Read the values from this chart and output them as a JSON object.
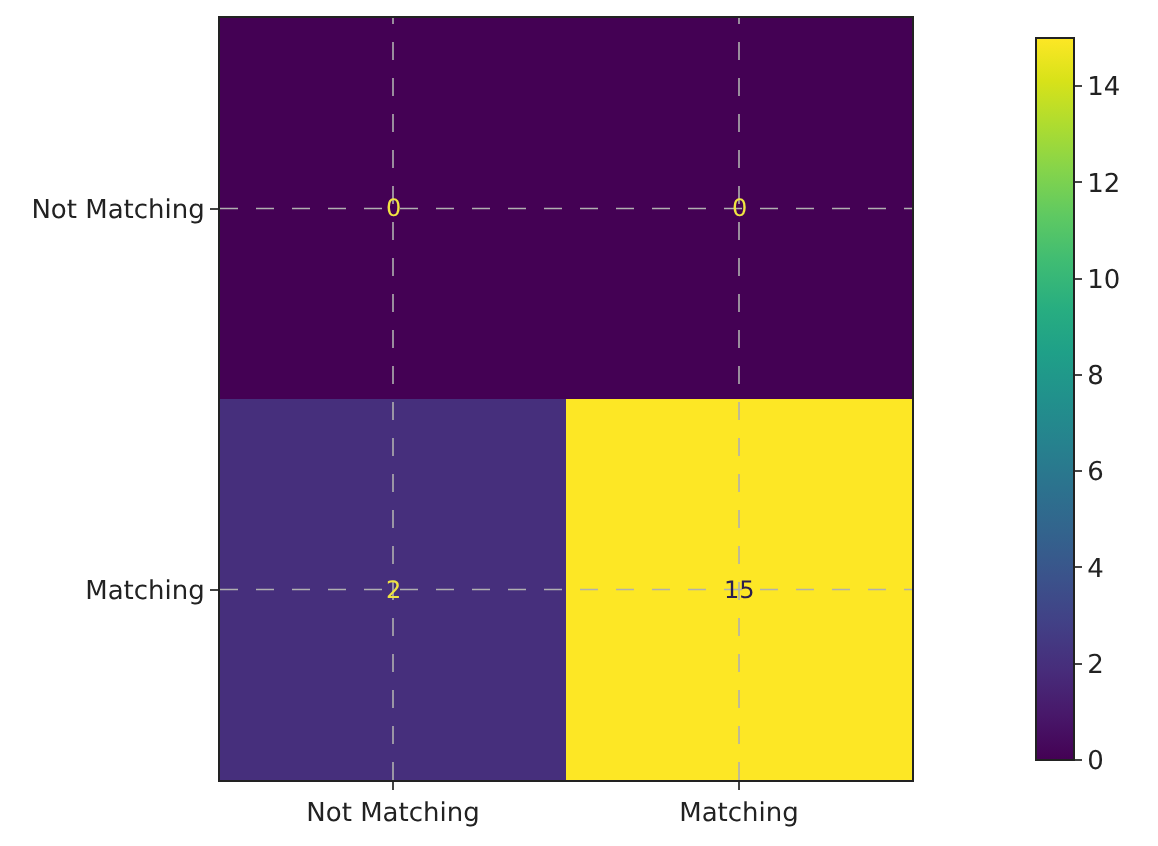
{
  "chart_data": {
    "type": "heatmap",
    "categories": [
      "Not Matching",
      "Matching"
    ],
    "y_categories": [
      "Not Matching",
      "Matching"
    ],
    "cells": [
      [
        0,
        0
      ],
      [
        2,
        15
      ]
    ],
    "clim": [
      0,
      15
    ],
    "cticks": [
      0,
      2,
      4,
      6,
      8,
      10,
      12,
      14
    ],
    "data_labels": true,
    "grid": true
  }
}
